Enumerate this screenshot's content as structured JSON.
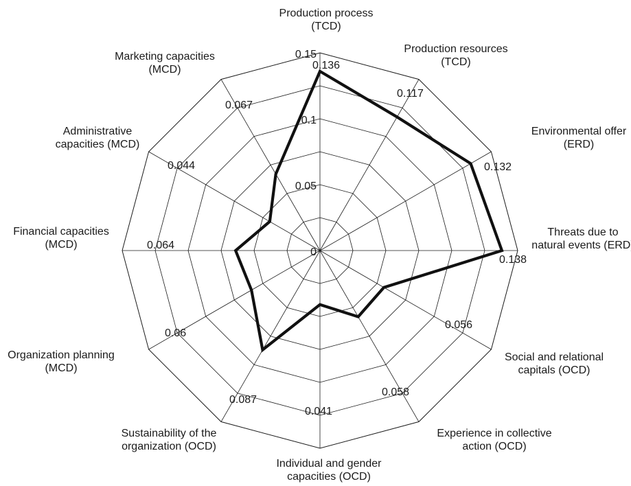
{
  "chart_data": {
    "type": "radar",
    "title": "",
    "r_range": [
      0,
      0.15
    ],
    "ticks": [
      "0",
      "0.05",
      "0.1",
      "0.15"
    ],
    "tick_values": [
      0,
      0.05,
      0.1,
      0.15
    ],
    "categories": [
      [
        "Production process",
        "(TCD)"
      ],
      [
        "Production resources",
        "(TCD)"
      ],
      [
        "Environmental offer",
        "(ERD)"
      ],
      [
        "Threats due to",
        "natural events (ERD)"
      ],
      [
        "Social and relational",
        "capitals (OCD)"
      ],
      [
        "Experience in collective",
        "action (OCD)"
      ],
      [
        "Individual and gender",
        "capacities (OCD)"
      ],
      [
        "Sustainability of the",
        "organization (OCD)"
      ],
      [
        "Organization planning",
        "(MCD)"
      ],
      [
        "Financial capacities",
        "(MCD)"
      ],
      [
        "Administrative",
        "capacities (MCD)"
      ],
      [
        "Marketing capacities",
        "(MCD)"
      ]
    ],
    "values": [
      0.136,
      0.117,
      0.132,
      0.138,
      0.056,
      0.058,
      0.041,
      0.087,
      0.06,
      0.064,
      0.044,
      0.067
    ],
    "value_labels": [
      "0.136",
      "0.117",
      "0.132",
      "0.138",
      "0.056",
      "0.058",
      "0.041",
      "0.087",
      "0.06",
      "0.064",
      "0.044",
      "0.067"
    ],
    "grid": true,
    "legend": "none"
  }
}
